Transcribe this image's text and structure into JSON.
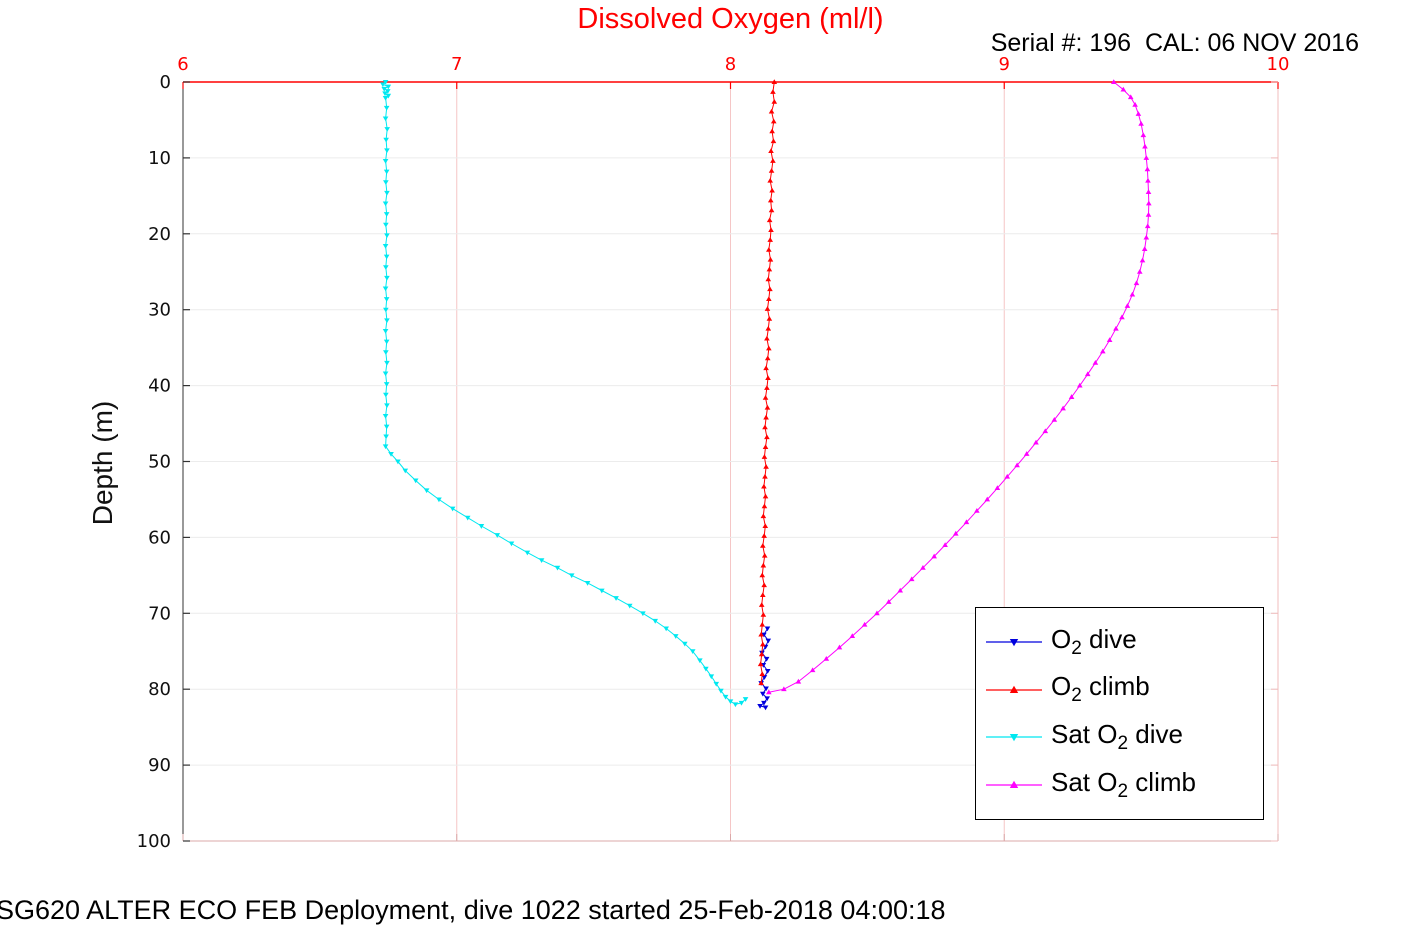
{
  "chart_data": {
    "type": "line",
    "title": "Dissolved Oxygen (ml/l)",
    "serial_annotation": "Serial #: 196  CAL: 06 NOV 2016",
    "ylabel": "Depth (m)",
    "caption": "SG620 ALTER ECO FEB Deployment, dive 1022 started 25-Feb-2018 04:00:18",
    "xlim": [
      6,
      10
    ],
    "ylim": [
      0,
      100
    ],
    "y_inverted": true,
    "x_axis_position": "top",
    "xticks": [
      6,
      7,
      8,
      9,
      10
    ],
    "yticks": [
      0,
      10,
      20,
      30,
      40,
      50,
      60,
      70,
      80,
      90,
      100
    ],
    "grid": {
      "x": true,
      "y": true
    },
    "colors": {
      "x_axis": "#ff0000",
      "x_axis_far": "#dba8a8",
      "y_axis": "#333333",
      "y_axis_far": "#f0bcbc",
      "x_grid": "#f5c6c6",
      "y_grid": "#ececec",
      "tick_label_y": "#111111"
    },
    "series": [
      {
        "name": "O2 dive",
        "color": "#0000dd",
        "marker": "v",
        "points": [
          [
            8.135,
            72
          ],
          [
            8.122,
            72.8
          ],
          [
            8.138,
            73.6
          ],
          [
            8.128,
            74.4
          ],
          [
            8.115,
            75.2
          ],
          [
            8.132,
            76
          ],
          [
            8.12,
            76.8
          ],
          [
            8.136,
            77.6
          ],
          [
            8.124,
            78.4
          ],
          [
            8.112,
            79.2
          ],
          [
            8.13,
            79.9
          ],
          [
            8.118,
            80.6
          ],
          [
            8.134,
            81.2
          ],
          [
            8.122,
            81.8
          ],
          [
            8.108,
            82.2
          ],
          [
            8.128,
            82.4
          ]
        ]
      },
      {
        "name": "O2 climb",
        "color": "#ff0000",
        "marker": "^",
        "points": [
          [
            8.16,
            0
          ],
          [
            8.155,
            1.3
          ],
          [
            8.16,
            2.6
          ],
          [
            8.15,
            3.9
          ],
          [
            8.158,
            5.2
          ],
          [
            8.152,
            6.5
          ],
          [
            8.157,
            7.8
          ],
          [
            8.148,
            9.1
          ],
          [
            8.155,
            10.4
          ],
          [
            8.15,
            11.7
          ],
          [
            8.145,
            13
          ],
          [
            8.152,
            14.3
          ],
          [
            8.147,
            15.6
          ],
          [
            8.15,
            16.9
          ],
          [
            8.143,
            18.2
          ],
          [
            8.148,
            19.5
          ],
          [
            8.145,
            20.8
          ],
          [
            8.14,
            22.1
          ],
          [
            8.146,
            23.4
          ],
          [
            8.142,
            24.7
          ],
          [
            8.138,
            26
          ],
          [
            8.144,
            27.3
          ],
          [
            8.14,
            28.6
          ],
          [
            8.135,
            29.9
          ],
          [
            8.142,
            31.2
          ],
          [
            8.138,
            32.5
          ],
          [
            8.133,
            33.8
          ],
          [
            8.14,
            35.1
          ],
          [
            8.136,
            36.4
          ],
          [
            8.13,
            37.7
          ],
          [
            8.137,
            39
          ],
          [
            8.133,
            40.3
          ],
          [
            8.128,
            41.6
          ],
          [
            8.135,
            42.9
          ],
          [
            8.13,
            44.2
          ],
          [
            8.126,
            45.5
          ],
          [
            8.133,
            46.8
          ],
          [
            8.128,
            48.1
          ],
          [
            8.124,
            49.4
          ],
          [
            8.13,
            50.7
          ],
          [
            8.126,
            52
          ],
          [
            8.122,
            53.3
          ],
          [
            8.128,
            54.6
          ],
          [
            8.124,
            55.9
          ],
          [
            8.12,
            57.2
          ],
          [
            8.127,
            58.5
          ],
          [
            8.123,
            59.8
          ],
          [
            8.118,
            61.1
          ],
          [
            8.125,
            62.4
          ],
          [
            8.12,
            63.7
          ],
          [
            8.116,
            65
          ],
          [
            8.123,
            66.3
          ],
          [
            8.118,
            67.6
          ],
          [
            8.114,
            68.9
          ],
          [
            8.12,
            70.2
          ],
          [
            8.116,
            71.5
          ],
          [
            8.112,
            72.8
          ],
          [
            8.118,
            74.1
          ],
          [
            8.114,
            75.4
          ],
          [
            8.11,
            76.7
          ],
          [
            8.116,
            78
          ],
          [
            8.112,
            79.2
          ]
        ]
      },
      {
        "name": "Sat O2 dive",
        "color": "#00e8f0",
        "marker": "v",
        "points": [
          [
            6.74,
            0
          ],
          [
            6.73,
            0.3
          ],
          [
            6.75,
            0.6
          ],
          [
            6.735,
            0.9
          ],
          [
            6.748,
            1.2
          ],
          [
            6.738,
            1.5
          ],
          [
            6.75,
            1.8
          ],
          [
            6.74,
            2.1
          ],
          [
            6.744,
            3.4
          ],
          [
            6.74,
            4.8
          ],
          [
            6.746,
            6.2
          ],
          [
            6.742,
            7.6
          ],
          [
            6.745,
            9
          ],
          [
            6.74,
            10.4
          ],
          [
            6.744,
            11.8
          ],
          [
            6.741,
            13.2
          ],
          [
            6.745,
            14.6
          ],
          [
            6.74,
            16
          ],
          [
            6.744,
            17.4
          ],
          [
            6.741,
            18.8
          ],
          [
            6.745,
            20.2
          ],
          [
            6.74,
            21.6
          ],
          [
            6.744,
            23
          ],
          [
            6.741,
            24.4
          ],
          [
            6.745,
            25.8
          ],
          [
            6.74,
            27.2
          ],
          [
            6.744,
            28.6
          ],
          [
            6.741,
            30
          ],
          [
            6.745,
            31.4
          ],
          [
            6.74,
            32.8
          ],
          [
            6.744,
            34.2
          ],
          [
            6.741,
            35.6
          ],
          [
            6.745,
            37
          ],
          [
            6.74,
            38.4
          ],
          [
            6.744,
            39.8
          ],
          [
            6.741,
            41.2
          ],
          [
            6.745,
            42.6
          ],
          [
            6.74,
            44
          ],
          [
            6.744,
            45.4
          ],
          [
            6.742,
            46.7
          ],
          [
            6.74,
            48
          ],
          [
            6.76,
            49
          ],
          [
            6.785,
            50
          ],
          [
            6.812,
            51.2
          ],
          [
            6.85,
            52.5
          ],
          [
            6.89,
            53.8
          ],
          [
            6.935,
            55
          ],
          [
            6.985,
            56.2
          ],
          [
            7.04,
            57.4
          ],
          [
            7.09,
            58.5
          ],
          [
            7.148,
            59.7
          ],
          [
            7.2,
            60.8
          ],
          [
            7.258,
            62
          ],
          [
            7.31,
            63
          ],
          [
            7.368,
            64
          ],
          [
            7.42,
            65
          ],
          [
            7.478,
            66
          ],
          [
            7.53,
            67
          ],
          [
            7.582,
            68
          ],
          [
            7.632,
            69
          ],
          [
            7.68,
            70
          ],
          [
            7.725,
            71
          ],
          [
            7.765,
            72
          ],
          [
            7.8,
            73
          ],
          [
            7.833,
            74
          ],
          [
            7.862,
            75
          ],
          [
            7.888,
            76.2
          ],
          [
            7.91,
            77.3
          ],
          [
            7.93,
            78.3
          ],
          [
            7.948,
            79.3
          ],
          [
            7.965,
            80.2
          ],
          [
            7.982,
            81
          ],
          [
            8.0,
            81.6
          ],
          [
            8.018,
            82
          ],
          [
            8.04,
            81.8
          ],
          [
            8.055,
            81.3
          ]
        ]
      },
      {
        "name": "Sat O2 climb",
        "color": "#ff00ff",
        "marker": "^",
        "points": [
          [
            9.4,
            0
          ],
          [
            9.435,
            1
          ],
          [
            9.462,
            2
          ],
          [
            9.478,
            3
          ],
          [
            9.49,
            4.2
          ],
          [
            9.5,
            5.5
          ],
          [
            9.508,
            7
          ],
          [
            9.514,
            8.5
          ],
          [
            9.519,
            10
          ],
          [
            9.523,
            11.5
          ],
          [
            9.525,
            13
          ],
          [
            9.527,
            14.5
          ],
          [
            9.528,
            16
          ],
          [
            9.527,
            17.5
          ],
          [
            9.524,
            19
          ],
          [
            9.519,
            20.5
          ],
          [
            9.513,
            22
          ],
          [
            9.505,
            23.5
          ],
          [
            9.495,
            25
          ],
          [
            9.483,
            26.5
          ],
          [
            9.468,
            28
          ],
          [
            9.45,
            29.5
          ],
          [
            9.43,
            31
          ],
          [
            9.408,
            32.5
          ],
          [
            9.385,
            34
          ],
          [
            9.36,
            35.5
          ],
          [
            9.333,
            37
          ],
          [
            9.305,
            38.5
          ],
          [
            9.276,
            40
          ],
          [
            9.246,
            41.5
          ],
          [
            9.215,
            43
          ],
          [
            9.183,
            44.5
          ],
          [
            9.15,
            46
          ],
          [
            9.116,
            47.5
          ],
          [
            9.082,
            49
          ],
          [
            9.047,
            50.5
          ],
          [
            9.011,
            52
          ],
          [
            8.975,
            53.5
          ],
          [
            8.938,
            55
          ],
          [
            8.9,
            56.5
          ],
          [
            8.862,
            58
          ],
          [
            8.823,
            59.5
          ],
          [
            8.784,
            61
          ],
          [
            8.744,
            62.5
          ],
          [
            8.703,
            64
          ],
          [
            8.662,
            65.5
          ],
          [
            8.62,
            67
          ],
          [
            8.578,
            68.5
          ],
          [
            8.535,
            70
          ],
          [
            8.49,
            71.5
          ],
          [
            8.445,
            73
          ],
          [
            8.398,
            74.5
          ],
          [
            8.35,
            76
          ],
          [
            8.3,
            77.5
          ],
          [
            8.248,
            79
          ],
          [
            8.195,
            80
          ],
          [
            8.14,
            80.4
          ]
        ]
      }
    ],
    "legend": {
      "position": "lower right",
      "entries": [
        {
          "pre": "O",
          "sub": "2",
          "post": " dive",
          "color": "#0000dd",
          "marker": "v"
        },
        {
          "pre": "O",
          "sub": "2",
          "post": " climb",
          "color": "#ff0000",
          "marker": "^"
        },
        {
          "pre": "Sat O",
          "sub": "2",
          "post": " dive",
          "color": "#00e8f0",
          "marker": "v"
        },
        {
          "pre": "Sat O",
          "sub": "2",
          "post": " climb",
          "color": "#ff00ff",
          "marker": "^"
        }
      ]
    }
  }
}
